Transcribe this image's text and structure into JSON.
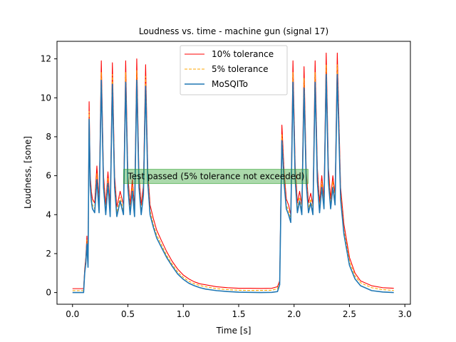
{
  "chart_data": {
    "type": "line",
    "title": "Loudness vs. time - machine gun (signal 17)",
    "xlabel": "Time [s]",
    "ylabel": "Loudness, [sone]",
    "xlim": [
      -0.14,
      3.05
    ],
    "ylim": [
      -0.6,
      12.9
    ],
    "xticks": [
      0.0,
      0.5,
      1.0,
      1.5,
      2.0,
      2.5,
      3.0
    ],
    "xtick_labels": [
      "0.0",
      "0.5",
      "1.0",
      "1.5",
      "2.0",
      "2.5",
      "3.0"
    ],
    "yticks": [
      0,
      2,
      4,
      6,
      8,
      10,
      12
    ],
    "ytick_labels": [
      "0",
      "2",
      "4",
      "6",
      "8",
      "10",
      "12"
    ],
    "grid": false,
    "legend_position": "top-center",
    "annotation": {
      "text": "Test passed (5% tolerance not exceeded)",
      "x": 0.5,
      "y": 6.0,
      "color": "#2ca02c"
    },
    "series": [
      {
        "name": "10% tolerance",
        "color": "#ff0000",
        "style": "solid",
        "x": [
          0.0,
          0.1,
          0.11,
          0.12,
          0.13,
          0.14,
          0.15,
          0.16,
          0.17,
          0.18,
          0.2,
          0.22,
          0.24,
          0.26,
          0.28,
          0.3,
          0.32,
          0.34,
          0.36,
          0.38,
          0.4,
          0.43,
          0.46,
          0.48,
          0.5,
          0.52,
          0.54,
          0.56,
          0.58,
          0.6,
          0.62,
          0.64,
          0.66,
          0.68,
          0.7,
          0.73,
          0.76,
          0.8,
          0.85,
          0.9,
          0.95,
          1.0,
          1.05,
          1.1,
          1.15,
          1.2,
          1.3,
          1.4,
          1.5,
          1.6,
          1.7,
          1.8,
          1.85,
          1.87,
          1.89,
          1.91,
          1.93,
          1.95,
          1.97,
          1.99,
          2.01,
          2.03,
          2.05,
          2.07,
          2.09,
          2.11,
          2.13,
          2.15,
          2.17,
          2.19,
          2.21,
          2.23,
          2.25,
          2.27,
          2.29,
          2.31,
          2.33,
          2.35,
          2.37,
          2.39,
          2.42,
          2.45,
          2.5,
          2.55,
          2.6,
          2.7,
          2.8,
          2.9
        ],
        "y": [
          0.2,
          0.2,
          1.2,
          1.8,
          2.9,
          1.5,
          9.8,
          6.0,
          5.2,
          4.8,
          4.6,
          6.5,
          4.6,
          11.9,
          6.0,
          4.5,
          6.2,
          4.4,
          11.8,
          6.0,
          4.4,
          5.2,
          4.5,
          11.9,
          6.0,
          4.5,
          5.8,
          4.4,
          12.0,
          6.0,
          4.5,
          5.5,
          11.7,
          6.2,
          4.5,
          3.8,
          3.2,
          2.7,
          2.1,
          1.6,
          1.2,
          0.9,
          0.7,
          0.55,
          0.45,
          0.4,
          0.3,
          0.25,
          0.22,
          0.22,
          0.21,
          0.22,
          0.3,
          0.6,
          8.6,
          6.2,
          4.8,
          4.5,
          4.0,
          11.9,
          6.5,
          4.6,
          5.2,
          4.5,
          11.6,
          6.2,
          4.6,
          5.1,
          4.5,
          11.9,
          6.4,
          4.6,
          6.0,
          4.8,
          12.3,
          6.4,
          4.8,
          6.0,
          5.0,
          12.3,
          5.4,
          3.5,
          1.8,
          1.0,
          0.6,
          0.35,
          0.25,
          0.22
        ]
      },
      {
        "name": "5% tolerance",
        "color": "#ffa500",
        "style": "dashed",
        "x": [
          0.0,
          0.1,
          0.11,
          0.12,
          0.13,
          0.14,
          0.15,
          0.16,
          0.17,
          0.18,
          0.2,
          0.22,
          0.24,
          0.26,
          0.28,
          0.3,
          0.32,
          0.34,
          0.36,
          0.38,
          0.4,
          0.43,
          0.46,
          0.48,
          0.5,
          0.52,
          0.54,
          0.56,
          0.58,
          0.6,
          0.62,
          0.64,
          0.66,
          0.68,
          0.7,
          0.73,
          0.76,
          0.8,
          0.85,
          0.9,
          0.95,
          1.0,
          1.05,
          1.1,
          1.15,
          1.2,
          1.3,
          1.4,
          1.5,
          1.6,
          1.7,
          1.8,
          1.85,
          1.87,
          1.89,
          1.91,
          1.93,
          1.95,
          1.97,
          1.99,
          2.01,
          2.03,
          2.05,
          2.07,
          2.09,
          2.11,
          2.13,
          2.15,
          2.17,
          2.19,
          2.21,
          2.23,
          2.25,
          2.27,
          2.29,
          2.31,
          2.33,
          2.35,
          2.37,
          2.39,
          2.42,
          2.45,
          2.5,
          2.55,
          2.6,
          2.7,
          2.8,
          2.9
        ],
        "y": [
          0.1,
          0.1,
          1.1,
          1.7,
          2.7,
          1.4,
          9.3,
          5.7,
          4.9,
          4.5,
          4.3,
          6.1,
          4.3,
          11.3,
          5.7,
          4.2,
          5.9,
          4.1,
          11.2,
          5.7,
          4.1,
          4.9,
          4.2,
          11.3,
          5.7,
          4.2,
          5.5,
          4.1,
          11.4,
          5.7,
          4.2,
          5.2,
          11.1,
          5.9,
          4.2,
          3.5,
          2.95,
          2.5,
          1.9,
          1.45,
          1.05,
          0.78,
          0.58,
          0.45,
          0.36,
          0.3,
          0.2,
          0.15,
          0.12,
          0.11,
          0.11,
          0.12,
          0.2,
          0.5,
          8.1,
          5.9,
          4.5,
          4.2,
          3.8,
          11.3,
          6.1,
          4.3,
          4.9,
          4.2,
          11.0,
          5.9,
          4.3,
          4.8,
          4.2,
          11.3,
          6.0,
          4.3,
          5.7,
          4.5,
          11.7,
          6.0,
          4.5,
          5.7,
          4.7,
          11.7,
          5.1,
          3.2,
          1.6,
          0.85,
          0.5,
          0.25,
          0.15,
          0.11
        ]
      },
      {
        "name": "MoSQITo",
        "color": "#1f77b4",
        "style": "solid",
        "x": [
          0.0,
          0.1,
          0.11,
          0.12,
          0.13,
          0.14,
          0.15,
          0.16,
          0.17,
          0.18,
          0.2,
          0.22,
          0.24,
          0.26,
          0.28,
          0.3,
          0.32,
          0.34,
          0.36,
          0.38,
          0.4,
          0.43,
          0.46,
          0.48,
          0.5,
          0.52,
          0.54,
          0.56,
          0.58,
          0.6,
          0.62,
          0.64,
          0.66,
          0.68,
          0.7,
          0.73,
          0.76,
          0.8,
          0.85,
          0.9,
          0.95,
          1.0,
          1.05,
          1.1,
          1.15,
          1.2,
          1.3,
          1.4,
          1.5,
          1.6,
          1.7,
          1.8,
          1.85,
          1.87,
          1.89,
          1.91,
          1.93,
          1.95,
          1.97,
          1.99,
          2.01,
          2.03,
          2.05,
          2.07,
          2.09,
          2.11,
          2.13,
          2.15,
          2.17,
          2.19,
          2.21,
          2.23,
          2.25,
          2.27,
          2.29,
          2.31,
          2.33,
          2.35,
          2.37,
          2.39,
          2.42,
          2.45,
          2.5,
          2.55,
          2.6,
          2.7,
          2.8,
          2.9
        ],
        "y": [
          0.0,
          0.0,
          1.0,
          1.5,
          2.5,
          1.3,
          8.9,
          5.5,
          4.7,
          4.3,
          4.1,
          5.8,
          4.1,
          10.9,
          5.4,
          4.0,
          5.6,
          3.9,
          10.7,
          5.4,
          3.9,
          4.7,
          4.0,
          10.8,
          5.4,
          4.0,
          5.2,
          3.9,
          10.9,
          5.4,
          4.0,
          5.0,
          10.6,
          5.6,
          4.0,
          3.35,
          2.8,
          2.35,
          1.8,
          1.35,
          0.95,
          0.68,
          0.48,
          0.35,
          0.25,
          0.18,
          0.1,
          0.05,
          0.02,
          0.01,
          0.0,
          0.01,
          0.05,
          0.4,
          7.8,
          5.6,
          4.3,
          4.0,
          3.6,
          10.8,
          5.8,
          4.1,
          4.7,
          4.0,
          10.5,
          5.6,
          4.1,
          4.6,
          4.0,
          10.8,
          5.7,
          4.1,
          5.4,
          4.3,
          11.2,
          5.7,
          4.3,
          5.4,
          4.5,
          11.2,
          4.8,
          3.0,
          1.4,
          0.7,
          0.35,
          0.1,
          0.03,
          0.0
        ]
      }
    ]
  }
}
